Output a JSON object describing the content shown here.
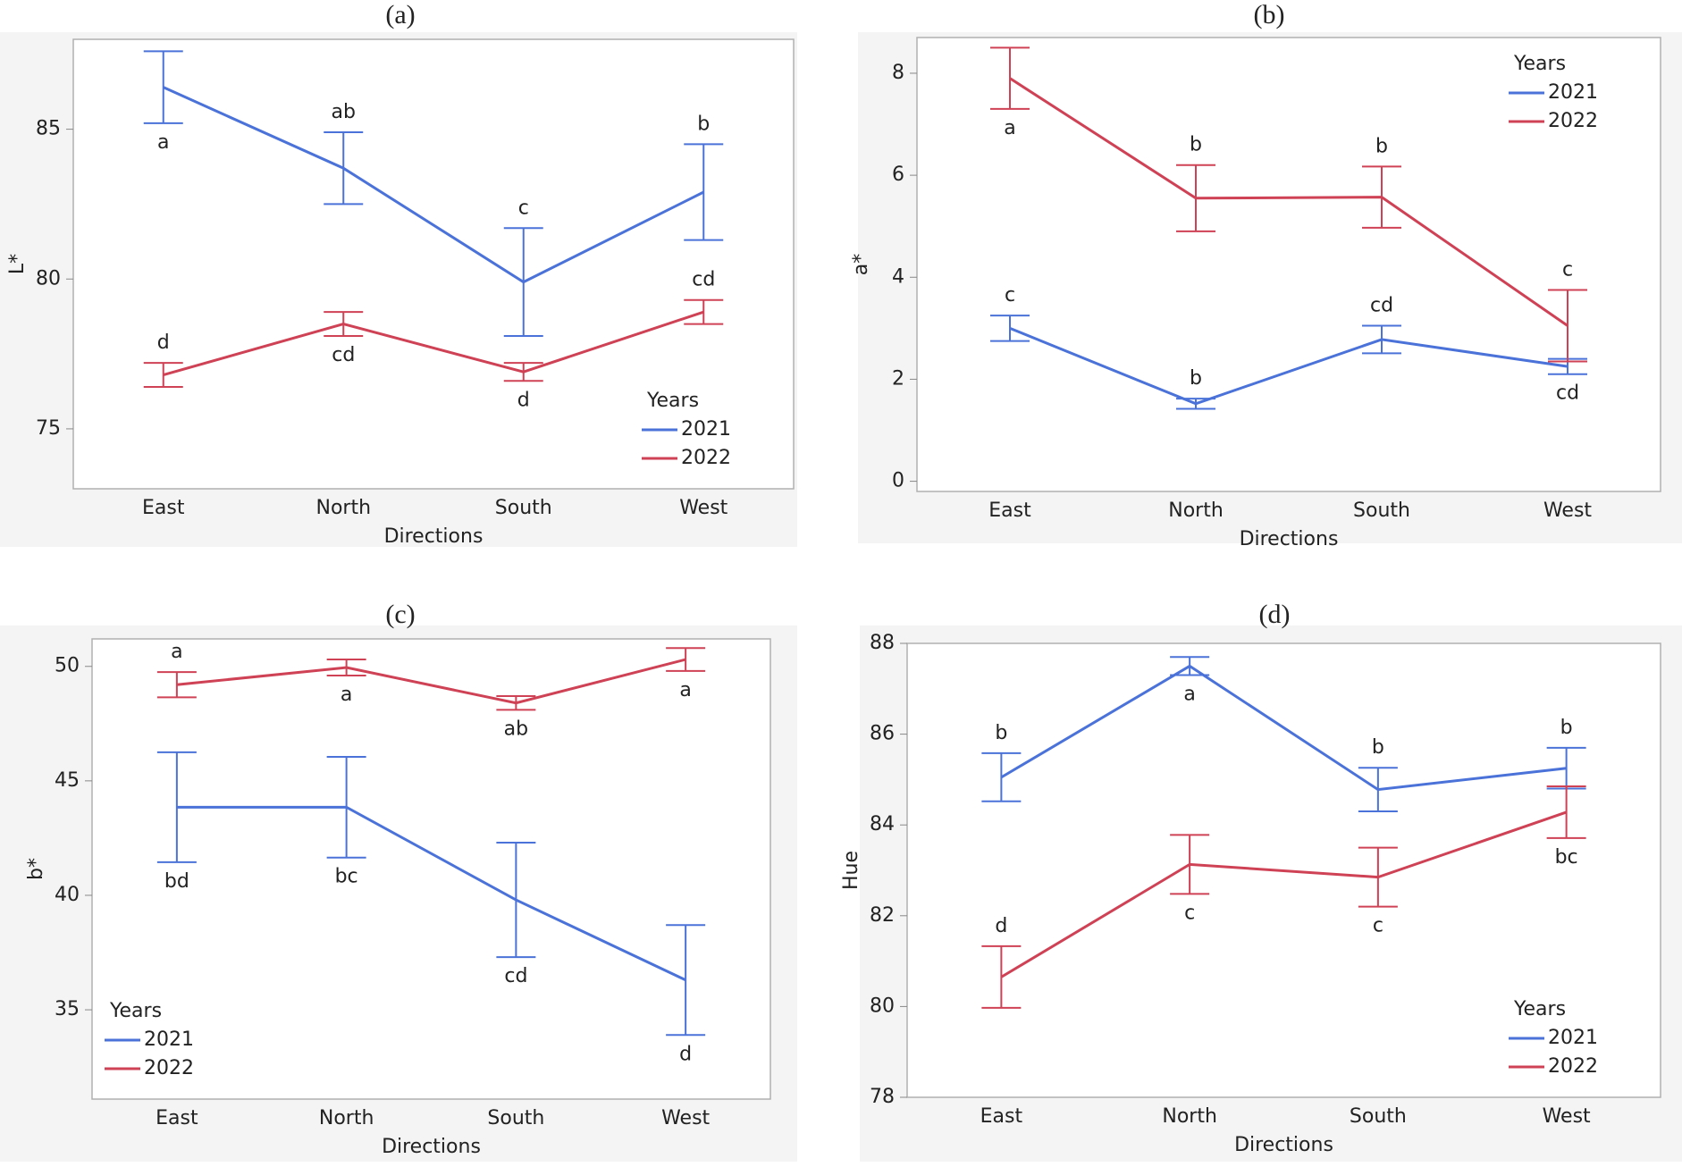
{
  "chart_data": [
    {
      "type": "line",
      "title": "(a)",
      "xlabel": "Directions",
      "ylabel": "L*",
      "legend_title": "Years",
      "legend": "lower right",
      "categories": [
        "East",
        "North",
        "South",
        "West"
      ],
      "ylim": [
        73,
        88
      ],
      "yticks": [
        75,
        80,
        85
      ],
      "series": [
        {
          "name": "2021",
          "color": "#4a72d8",
          "values": [
            86.4,
            83.7,
            79.9,
            82.9
          ],
          "errors": [
            1.2,
            1.2,
            1.8,
            1.6
          ],
          "letters": [
            "a",
            "ab",
            "c",
            "b"
          ],
          "letter_side": [
            "below",
            "above",
            "above",
            "above"
          ]
        },
        {
          "name": "2022",
          "color": "#cf4155",
          "values": [
            76.8,
            78.5,
            76.9,
            78.9
          ],
          "errors": [
            0.4,
            0.4,
            0.3,
            0.4
          ],
          "letters": [
            "d",
            "cd",
            "d",
            "cd"
          ],
          "letter_side": [
            "above",
            "below",
            "below",
            "above"
          ]
        }
      ]
    },
    {
      "type": "line",
      "title": "(b)",
      "xlabel": "Directions",
      "ylabel": "a*",
      "legend_title": "Years",
      "legend": "upper right",
      "categories": [
        "East",
        "North",
        "South",
        "West"
      ],
      "ylim": [
        -0.2,
        8.7
      ],
      "yticks": [
        0,
        2,
        4,
        6,
        8
      ],
      "series": [
        {
          "name": "2021",
          "color": "#4a72d8",
          "values": [
            3.0,
            1.52,
            2.78,
            2.25
          ],
          "errors": [
            0.25,
            0.1,
            0.27,
            0.15
          ],
          "letters": [
            "c",
            "b",
            "cd",
            "cd"
          ],
          "letter_side": [
            "above",
            "above",
            "above",
            "below"
          ]
        },
        {
          "name": "2022",
          "color": "#cf4155",
          "values": [
            7.9,
            5.55,
            5.57,
            3.05
          ],
          "errors": [
            0.6,
            0.65,
            0.6,
            0.7
          ],
          "letters": [
            "a",
            "b",
            "b",
            "c"
          ],
          "letter_side": [
            "below",
            "above",
            "above",
            "above"
          ]
        }
      ]
    },
    {
      "type": "line",
      "title": "(c)",
      "xlabel": "Directions",
      "ylabel": "b*",
      "legend_title": "Years",
      "legend": "lower left",
      "categories": [
        "East",
        "North",
        "South",
        "West"
      ],
      "ylim": [
        31.1,
        51.2
      ],
      "yticks": [
        35,
        40,
        45,
        50
      ],
      "series": [
        {
          "name": "2021",
          "color": "#4a72d8",
          "values": [
            43.85,
            43.85,
            39.8,
            36.3
          ],
          "errors": [
            2.4,
            2.2,
            2.5,
            2.4
          ],
          "letters": [
            "bd",
            "bc",
            "cd",
            "d"
          ],
          "letter_side": [
            "below",
            "below",
            "below",
            "below"
          ]
        },
        {
          "name": "2022",
          "color": "#cf4155",
          "values": [
            49.2,
            49.95,
            48.4,
            50.3
          ],
          "errors": [
            0.55,
            0.35,
            0.3,
            0.5
          ],
          "letters": [
            "a",
            "a",
            "ab",
            "a"
          ],
          "letter_side": [
            "above",
            "below",
            "below",
            "below"
          ]
        }
      ]
    },
    {
      "type": "line",
      "title": "(d)",
      "xlabel": "Directions",
      "ylabel": "Hue",
      "legend_title": "Years",
      "legend": "lower right",
      "categories": [
        "East",
        "North",
        "South",
        "West"
      ],
      "ylim": [
        78,
        88
      ],
      "yticks": [
        78,
        80,
        82,
        84,
        86,
        88
      ],
      "series": [
        {
          "name": "2021",
          "color": "#4a72d8",
          "values": [
            85.05,
            87.5,
            84.78,
            85.25
          ],
          "errors": [
            0.53,
            0.2,
            0.48,
            0.45
          ],
          "letters": [
            "b",
            "a",
            "b",
            "b"
          ],
          "letter_side": [
            "above",
            "below",
            "above",
            "above"
          ]
        },
        {
          "name": "2022",
          "color": "#cf4155",
          "values": [
            80.65,
            83.13,
            82.85,
            84.28
          ],
          "errors": [
            0.68,
            0.65,
            0.65,
            0.57
          ],
          "letters": [
            "d",
            "c",
            "c",
            "bc"
          ],
          "letter_side": [
            "above",
            "below",
            "below",
            "below"
          ]
        }
      ]
    }
  ]
}
